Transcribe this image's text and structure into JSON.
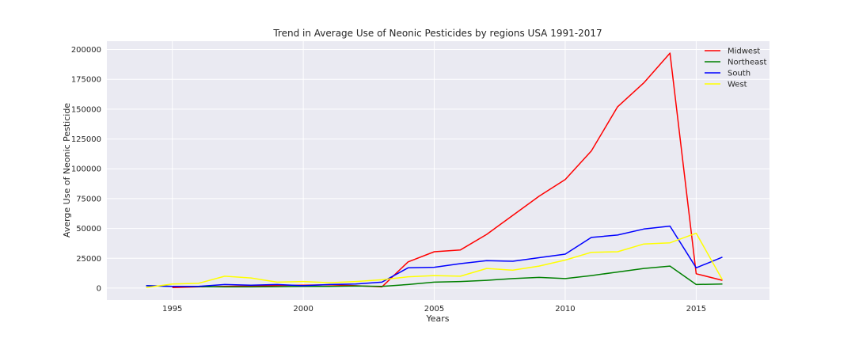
{
  "chart_data": {
    "type": "line",
    "title": "Trend in Average Use of Neonic Pesticides by regions USA 1991-2017",
    "xlabel": "Years",
    "ylabel": "Averge Use of Neonic Pesticide",
    "xlim": [
      1992.5,
      2017.8
    ],
    "ylim": [
      -10000,
      207000
    ],
    "xticks": [
      1995,
      2000,
      2005,
      2010,
      2015
    ],
    "yticks": [
      0,
      25000,
      50000,
      75000,
      100000,
      125000,
      150000,
      175000,
      200000
    ],
    "grid": true,
    "background": "#eaeaf2",
    "legend_position": "top-right",
    "series": [
      {
        "name": "Midwest",
        "color": "#ff0000",
        "x": [
          1995,
          1996,
          1997,
          1998,
          1999,
          2000,
          2001,
          2002,
          2003,
          2004,
          2005,
          2006,
          2007,
          2008,
          2009,
          2010,
          2011,
          2012,
          2013,
          2014,
          2015,
          2016
        ],
        "y": [
          500,
          1000,
          1500,
          1800,
          2200,
          2500,
          2800,
          2000,
          1000,
          22000,
          30500,
          32000,
          45000,
          61000,
          77000,
          91000,
          115000,
          152000,
          172000,
          197000,
          12000,
          6500
        ]
      },
      {
        "name": "Northeast",
        "color": "#008000",
        "x": [
          1994,
          1995,
          1996,
          1997,
          1998,
          1999,
          2000,
          2001,
          2002,
          2003,
          2004,
          2005,
          2006,
          2007,
          2008,
          2009,
          2010,
          2011,
          2012,
          2013,
          2014,
          2015,
          2016
        ],
        "y": [
          2000,
          1500,
          1200,
          1000,
          1000,
          1200,
          1500,
          1500,
          1800,
          1500,
          3000,
          5000,
          5500,
          6500,
          8000,
          9000,
          8000,
          10500,
          13500,
          16500,
          18500,
          3000,
          3500
        ]
      },
      {
        "name": "South",
        "color": "#0000ff",
        "x": [
          1994,
          1995,
          1996,
          1997,
          1998,
          1999,
          2000,
          2001,
          2002,
          2003,
          2004,
          2005,
          2006,
          2007,
          2008,
          2009,
          2010,
          2011,
          2012,
          2013,
          2014,
          2015,
          2016
        ],
        "y": [
          2000,
          1500,
          1500,
          3000,
          2500,
          3000,
          2000,
          3000,
          3500,
          5000,
          17000,
          17500,
          20500,
          23000,
          22500,
          25500,
          28500,
          42500,
          44500,
          49500,
          52000,
          17000,
          26000
        ]
      },
      {
        "name": "West",
        "color": "#ffff00",
        "x": [
          1994,
          1995,
          1996,
          1997,
          1998,
          1999,
          2000,
          2001,
          2002,
          2003,
          2004,
          2005,
          2006,
          2007,
          2008,
          2009,
          2010,
          2011,
          2012,
          2013,
          2014,
          2015,
          2016
        ],
        "y": [
          500,
          3500,
          4000,
          10000,
          8500,
          5000,
          5500,
          4500,
          5500,
          7000,
          9500,
          10500,
          10000,
          16500,
          15000,
          18500,
          23500,
          30000,
          30500,
          37000,
          38000,
          46000,
          7000
        ]
      }
    ]
  }
}
